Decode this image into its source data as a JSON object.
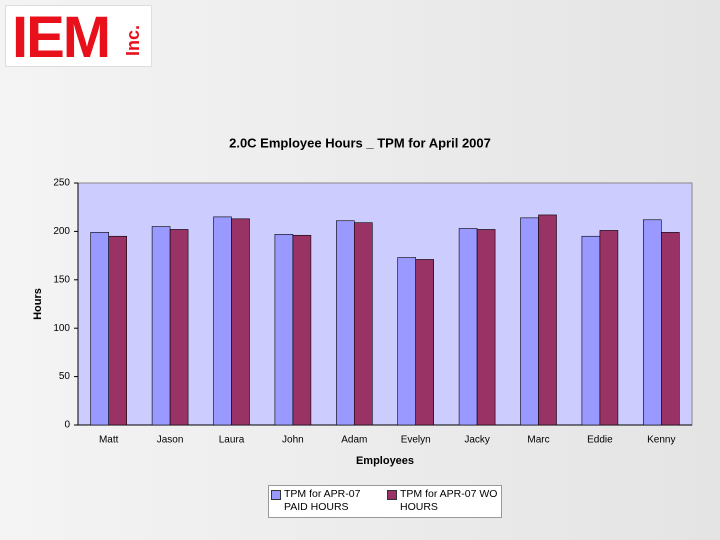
{
  "logo": {
    "text": "IEM",
    "suffix": "Inc."
  },
  "chart_data": {
    "type": "bar",
    "title": "2.0C Employee Hours _ TPM for April 2007",
    "x_label": "Employees",
    "y_label": "Hours",
    "categories": [
      "Matt",
      "Jason",
      "Laura",
      "John",
      "Adam",
      "Evelyn",
      "Jacky",
      "Marc",
      "Eddie",
      "Kenny"
    ],
    "series": [
      {
        "name": "TPM for APR-07 PAID HOURS",
        "color": "#9999ff",
        "values": [
          199,
          205,
          215,
          197,
          211,
          173,
          203,
          214,
          195,
          212
        ]
      },
      {
        "name": "TPM for APR-07 WO HOURS",
        "color": "#993366",
        "values": [
          195,
          202,
          213,
          196,
          209,
          171,
          202,
          217,
          201,
          199
        ]
      }
    ],
    "ylim": [
      0,
      250
    ],
    "yticks": [
      0,
      50,
      100,
      150,
      200,
      250
    ],
    "grid": false,
    "plot_background": "#ccccff",
    "legend": "bottom"
  }
}
